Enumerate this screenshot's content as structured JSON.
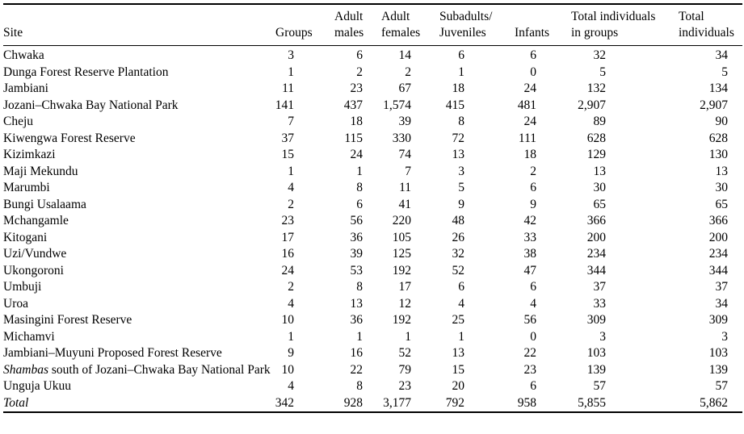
{
  "colors": {
    "text": "#000000",
    "background": "#ffffff",
    "rule": "#000000"
  },
  "table": {
    "headers": [
      {
        "id": "site",
        "label": "Site"
      },
      {
        "id": "groups",
        "label": "Groups"
      },
      {
        "id": "adult_males",
        "label": "Adult\nmales"
      },
      {
        "id": "adult_females",
        "label": "Adult\nfemales"
      },
      {
        "id": "subadults_juveniles",
        "label": "Subadults/\nJuveniles"
      },
      {
        "id": "infants",
        "label": "Infants"
      },
      {
        "id": "total_in_groups",
        "label": "Total individuals\nin groups"
      },
      {
        "id": "total_individuals",
        "label": "Total\nindividuals"
      }
    ],
    "rows": [
      {
        "label_italic_prefix": "",
        "label": "Chwaka",
        "values": [
          "3",
          "6",
          "14",
          "6",
          "6",
          "32",
          "34"
        ]
      },
      {
        "label_italic_prefix": "",
        "label": "Dunga Forest Reserve Plantation",
        "values": [
          "1",
          "2",
          "2",
          "1",
          "0",
          "5",
          "5"
        ]
      },
      {
        "label_italic_prefix": "",
        "label": "Jambiani",
        "values": [
          "11",
          "23",
          "67",
          "18",
          "24",
          "132",
          "134"
        ]
      },
      {
        "label_italic_prefix": "",
        "label": "Jozani–Chwaka Bay National Park",
        "values": [
          "141",
          "437",
          "1,574",
          "415",
          "481",
          "2,907",
          "2,907"
        ]
      },
      {
        "label_italic_prefix": "",
        "label": "Cheju",
        "values": [
          "7",
          "18",
          "39",
          "8",
          "24",
          "89",
          "90"
        ]
      },
      {
        "label_italic_prefix": "",
        "label": "Kiwengwa Forest Reserve",
        "values": [
          "37",
          "115",
          "330",
          "72",
          "111",
          "628",
          "628"
        ]
      },
      {
        "label_italic_prefix": "",
        "label": "Kizimkazi",
        "values": [
          "15",
          "24",
          "74",
          "13",
          "18",
          "129",
          "130"
        ]
      },
      {
        "label_italic_prefix": "",
        "label": "Maji Mekundu",
        "values": [
          "1",
          "1",
          "7",
          "3",
          "2",
          "13",
          "13"
        ]
      },
      {
        "label_italic_prefix": "",
        "label": "Marumbi",
        "values": [
          "4",
          "8",
          "11",
          "5",
          "6",
          "30",
          "30"
        ]
      },
      {
        "label_italic_prefix": "",
        "label": "Bungi Usalaama",
        "values": [
          "2",
          "6",
          "41",
          "9",
          "9",
          "65",
          "65"
        ]
      },
      {
        "label_italic_prefix": "",
        "label": "Mchangamle",
        "values": [
          "23",
          "56",
          "220",
          "48",
          "42",
          "366",
          "366"
        ]
      },
      {
        "label_italic_prefix": "",
        "label": "Kitogani",
        "values": [
          "17",
          "36",
          "105",
          "26",
          "33",
          "200",
          "200"
        ]
      },
      {
        "label_italic_prefix": "",
        "label": "Uzi/Vundwe",
        "values": [
          "16",
          "39",
          "125",
          "32",
          "38",
          "234",
          "234"
        ]
      },
      {
        "label_italic_prefix": "",
        "label": "Ukongoroni",
        "values": [
          "24",
          "53",
          "192",
          "52",
          "47",
          "344",
          "344"
        ]
      },
      {
        "label_italic_prefix": "",
        "label": "Umbuji",
        "values": [
          "2",
          "8",
          "17",
          "6",
          "6",
          "37",
          "37"
        ]
      },
      {
        "label_italic_prefix": "",
        "label": "Uroa",
        "values": [
          "4",
          "13",
          "12",
          "4",
          "4",
          "33",
          "34"
        ]
      },
      {
        "label_italic_prefix": "",
        "label": "Masingini Forest Reserve",
        "values": [
          "10",
          "36",
          "192",
          "25",
          "56",
          "309",
          "309"
        ]
      },
      {
        "label_italic_prefix": "",
        "label": "Michamvi",
        "values": [
          "1",
          "1",
          "1",
          "1",
          "0",
          "3",
          "3"
        ]
      },
      {
        "label_italic_prefix": "",
        "label": "Jambiani–Muyuni Proposed Forest Reserve",
        "values": [
          "9",
          "16",
          "52",
          "13",
          "22",
          "103",
          "103"
        ]
      },
      {
        "label_italic_prefix": "Shambas",
        "label": " south of Jozani–Chwaka Bay National Park",
        "values": [
          "10",
          "22",
          "79",
          "15",
          "23",
          "139",
          "139"
        ]
      },
      {
        "label_italic_prefix": "",
        "label": "Unguja Ukuu",
        "values": [
          "4",
          "8",
          "23",
          "20",
          "6",
          "57",
          "57"
        ]
      },
      {
        "label_italic_prefix": "Total",
        "label": "",
        "values": [
          "342",
          "928",
          "3,177",
          "792",
          "958",
          "5,855",
          "5,862"
        ]
      }
    ]
  }
}
